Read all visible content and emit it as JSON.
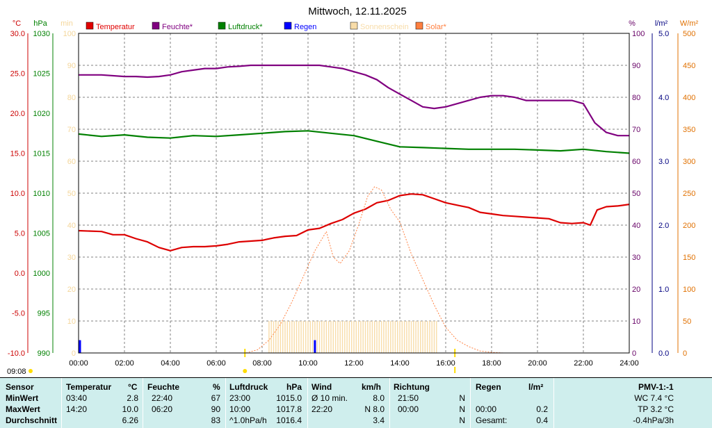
{
  "chart_data": {
    "type": "line",
    "title": "Mittwoch, 12.11.2025",
    "x_ticks": [
      "00:00",
      "02:00",
      "04:00",
      "06:00",
      "08:00",
      "10:00",
      "12:00",
      "14:00",
      "16:00",
      "18:00",
      "20:00",
      "22:00",
      "24:00"
    ],
    "xlim": [
      0,
      24
    ],
    "axes": {
      "temp": {
        "unit": "°C",
        "ticks": [
          "30.0",
          "25.0",
          "20.0",
          "15.0",
          "10.0",
          "5.0",
          "0.0",
          "-5.0",
          "-10.0"
        ],
        "range": [
          -10,
          30
        ],
        "color": "#cc0000"
      },
      "press": {
        "unit": "hPa",
        "ticks": [
          "1030",
          "1025",
          "1020",
          "1015",
          "1010",
          "1005",
          "1000",
          "995",
          "990"
        ],
        "range": [
          990,
          1030
        ],
        "color": "#008000"
      },
      "minutes": {
        "unit": "min",
        "ticks": [
          "100",
          "90",
          "80",
          "70",
          "60",
          "50",
          "40",
          "30",
          "20",
          "10",
          "0"
        ],
        "range": [
          0,
          100
        ],
        "color": "#f4d69a"
      },
      "hum": {
        "unit": "%",
        "ticks": [
          "100",
          "90",
          "80",
          "70",
          "60",
          "50",
          "40",
          "30",
          "20",
          "10",
          "0"
        ],
        "range": [
          0,
          100
        ],
        "color": "#660066"
      },
      "rain": {
        "unit": "l/m²",
        "ticks": [
          "5.0",
          "4.0",
          "3.0",
          "2.0",
          "1.0",
          "0.0"
        ],
        "range": [
          0,
          5
        ],
        "color": "#000080"
      },
      "solar": {
        "unit": "W/m²",
        "ticks": [
          "500",
          "450",
          "400",
          "350",
          "300",
          "250",
          "200",
          "150",
          "100",
          "50",
          "0"
        ],
        "range": [
          0,
          500
        ],
        "color": "#e07000"
      }
    },
    "legend": [
      {
        "name": "Temperatur",
        "color": "#e00000"
      },
      {
        "name": "Feuchte*",
        "color": "#800080"
      },
      {
        "name": "Luftdruck*",
        "color": "#008000"
      },
      {
        "name": "Regen",
        "color": "#0000ff"
      },
      {
        "name": "Sonnenschein",
        "color": "#f8dca8"
      },
      {
        "name": "Solar*",
        "color": "#ff7f3f"
      }
    ],
    "series": [
      {
        "name": "Temperatur",
        "axis": "temp",
        "color": "#dd0000",
        "x": [
          0,
          1,
          1.5,
          2,
          2.5,
          3,
          3.5,
          4,
          4.5,
          5,
          5.5,
          6,
          6.5,
          7,
          7.5,
          8,
          8.5,
          9,
          9.5,
          10,
          10.5,
          11,
          11.5,
          12,
          12.5,
          13,
          13.5,
          14,
          14.5,
          15,
          15.5,
          16,
          16.5,
          17,
          17.5,
          18,
          18.5,
          19,
          19.5,
          20,
          20.5,
          21,
          21.5,
          22,
          22.3,
          22.6,
          23,
          23.5,
          24
        ],
        "y": [
          5.3,
          5.2,
          4.8,
          4.8,
          4.3,
          3.9,
          3.2,
          2.8,
          3.2,
          3.3,
          3.3,
          3.4,
          3.6,
          3.9,
          4.0,
          4.1,
          4.4,
          4.6,
          4.7,
          5.4,
          5.6,
          6.2,
          6.7,
          7.5,
          8.0,
          8.8,
          9.1,
          9.7,
          9.9,
          9.8,
          9.3,
          8.8,
          8.5,
          8.2,
          7.6,
          7.4,
          7.2,
          7.1,
          7.0,
          6.9,
          6.8,
          6.3,
          6.2,
          6.3,
          6.0,
          7.9,
          8.3,
          8.4,
          8.6
        ]
      },
      {
        "name": "Feuchte*",
        "axis": "hum",
        "color": "#800080",
        "x": [
          0,
          1,
          2,
          2.5,
          3,
          3.5,
          4,
          4.5,
          5,
          5.5,
          6,
          6.5,
          7,
          7.5,
          8,
          8.5,
          9,
          9.5,
          10,
          10.5,
          11,
          11.5,
          12,
          12.5,
          13,
          13.5,
          14,
          14.5,
          15,
          15.5,
          16,
          16.5,
          17,
          17.5,
          18,
          18.5,
          19,
          19.5,
          20,
          20.5,
          21,
          21.5,
          22,
          22.5,
          23,
          23.5,
          24
        ],
        "y": [
          87,
          87,
          86.5,
          86.5,
          86.3,
          86.5,
          87,
          88,
          88.5,
          89,
          89,
          89.5,
          89.7,
          90,
          90,
          90,
          90,
          90,
          90,
          90,
          89.5,
          89,
          88,
          87,
          85.5,
          83,
          81,
          79,
          77,
          76.5,
          77,
          78,
          79,
          80,
          80.5,
          80.5,
          80,
          79,
          79,
          79,
          79,
          79,
          78,
          72,
          69,
          68,
          68
        ]
      },
      {
        "name": "Luftdruck*",
        "axis": "press",
        "color": "#008000",
        "x": [
          0,
          1,
          2,
          3,
          4,
          5,
          6,
          7,
          8,
          9,
          10,
          11,
          12,
          13,
          14,
          15,
          16,
          17,
          18,
          19,
          20,
          21,
          22,
          23,
          24
        ],
        "y": [
          1017.4,
          1017.1,
          1017.3,
          1017.0,
          1016.9,
          1017.2,
          1017.1,
          1017.3,
          1017.5,
          1017.7,
          1017.8,
          1017.5,
          1017.2,
          1016.5,
          1015.8,
          1015.7,
          1015.6,
          1015.5,
          1015.5,
          1015.5,
          1015.4,
          1015.3,
          1015.5,
          1015.2,
          1015.0
        ]
      },
      {
        "name": "Solar*",
        "axis": "solar",
        "color": "#ff8040",
        "dashed": true,
        "x": [
          7.3,
          7.8,
          8.3,
          8.8,
          9.3,
          9.8,
          10.3,
          10.8,
          11.1,
          11.4,
          11.8,
          12.2,
          12.6,
          12.9,
          13.2,
          13.6,
          14.0,
          14.5,
          15.0,
          15.5,
          16.0,
          16.5,
          17.0,
          17.5,
          18.0,
          18.5
        ],
        "y": [
          0,
          5,
          20,
          45,
          80,
          120,
          160,
          190,
          150,
          140,
          160,
          200,
          245,
          260,
          255,
          225,
          205,
          155,
          115,
          75,
          40,
          20,
          10,
          3,
          1,
          0
        ]
      }
    ],
    "sunshine_bars": {
      "axis": "minutes",
      "color": "#f8dca8",
      "from": 8.3,
      "to": 15.6,
      "value": 10
    },
    "rain_bars": {
      "axis": "rain",
      "color": "#0000ff",
      "x": [
        0.0,
        10.3
      ],
      "values": [
        0.2,
        0.2
      ]
    },
    "markers": [
      {
        "x": 7.25,
        "color": "#ffdd00",
        "shape": "dot"
      },
      {
        "x": 16.4,
        "color": "#ffdd00",
        "shape": "tick"
      }
    ],
    "time_label": "09:08"
  },
  "stats": {
    "headers": {
      "sensor": "Sensor",
      "temp": "Temperatur",
      "temp_unit": "°C",
      "hum": "Feuchte",
      "hum_unit": "%",
      "press": "Luftdruck",
      "press_unit": "hPa",
      "wind": "Wind",
      "wind_unit": "km/h",
      "dir": "Richtung",
      "rain": "Regen",
      "rain_unit": "l/m²",
      "pmv": "PMV-1:-1"
    },
    "rows": [
      {
        "label": "MinWert",
        "temp_t": "03:40",
        "temp_v": "2.8",
        "hum_t": "22:40",
        "hum_v": "67",
        "press_t": "23:00",
        "press_v": "1015.0",
        "wind_t": "Ø 10 min.",
        "wind_v": "8.0",
        "dir_t": "21:50",
        "dir_v": "N",
        "rain_t": "",
        "rain_v": "",
        "pmv": "WC 7.4 °C"
      },
      {
        "label": "MaxWert",
        "temp_t": "14:20",
        "temp_v": "10.0",
        "hum_t": "06:20",
        "hum_v": "90",
        "press_t": "10:00",
        "press_v": "1017.8",
        "wind_t": "22:20",
        "wind_v": "N 8.0",
        "dir_t": "00:00",
        "dir_v": "N",
        "rain_t": "00:00",
        "rain_v": "0.2",
        "pmv": "TP 3.2 °C"
      },
      {
        "label": "Durchschnitt",
        "temp_t": "",
        "temp_v": "6.26",
        "hum_t": "",
        "hum_v": "83",
        "press_t": "^1.0hPa/h",
        "press_v": "1016.4",
        "wind_t": "",
        "wind_v": "3.4",
        "dir_t": "",
        "dir_v": "N",
        "rain_t": "Gesamt:",
        "rain_v": "0.4",
        "pmv": "-0.4hPa/3h"
      }
    ]
  }
}
